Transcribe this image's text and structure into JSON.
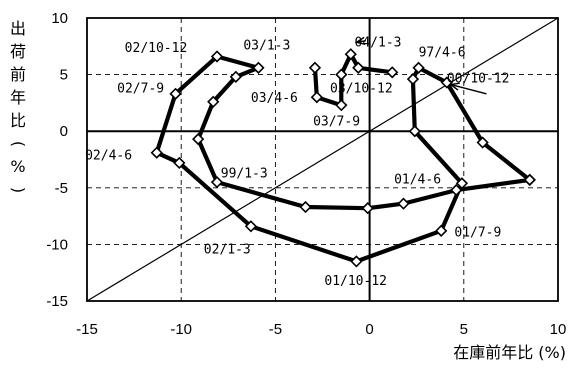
{
  "chart_data": {
    "type": "line",
    "xlabel": "在庫前年比 (%)",
    "ylabel": "出荷前年比 (%)",
    "xlim": [
      -15,
      10
    ],
    "ylim": [
      -15,
      10
    ],
    "x_ticks": [
      "-15",
      "-10",
      "-5",
      "0",
      "5",
      "10"
    ],
    "y_ticks": [
      "10",
      "5",
      "0",
      "-5",
      "-10",
      "-15"
    ],
    "grid": "dashed",
    "reference_line": "y = x",
    "series": [
      {
        "points": [
          {
            "x": 8.5,
            "y": -4.3
          },
          {
            "x": 6.0,
            "y": -1.0
          },
          {
            "x": 4.1,
            "y": 4.3
          },
          {
            "x": 2.6,
            "y": 5.6
          },
          {
            "x": 2.3,
            "y": 4.6
          },
          {
            "x": 2.4,
            "y": 0.0
          },
          {
            "x": 4.9,
            "y": -4.6
          },
          {
            "x": 3.8,
            "y": -8.8
          },
          {
            "x": -0.7,
            "y": -11.5
          },
          {
            "x": -6.3,
            "y": -8.4
          },
          {
            "x": -10.1,
            "y": -2.8
          },
          {
            "x": -11.3,
            "y": -1.9
          },
          {
            "x": -10.3,
            "y": 3.3
          },
          {
            "x": -8.1,
            "y": 6.6
          },
          {
            "x": -5.9,
            "y": 5.6
          },
          {
            "x": -7.1,
            "y": 4.8
          },
          {
            "x": -8.3,
            "y": 2.6
          },
          {
            "x": -9.1,
            "y": -0.7
          },
          {
            "x": -8.1,
            "y": -4.5
          },
          {
            "x": -3.4,
            "y": -6.7
          },
          {
            "x": -0.1,
            "y": -6.8
          },
          {
            "x": 1.8,
            "y": -6.4
          },
          {
            "x": 4.6,
            "y": -5.2
          },
          {
            "x": 8.5,
            "y": -4.3
          }
        ]
      },
      {
        "points": [
          {
            "x": -2.9,
            "y": 5.6
          },
          {
            "x": -2.8,
            "y": 3.0
          },
          {
            "x": -1.5,
            "y": 2.3
          },
          {
            "x": -1.5,
            "y": 5.0
          },
          {
            "x": -1.0,
            "y": 6.8
          },
          {
            "x": -0.6,
            "y": 5.6
          },
          {
            "x": 1.2,
            "y": 5.2
          }
        ]
      }
    ],
    "annotations": [
      {
        "text": "04/1-3",
        "x": -0.8,
        "y": 7.5,
        "arrow_from": [
          -0.2,
          8.0
        ]
      },
      {
        "text": "97/4-6",
        "x": 2.6,
        "y": 6.6
      },
      {
        "text": "00/10-12",
        "x": 4.1,
        "y": 4.3,
        "arrow_from": [
          6.2,
          3.3
        ]
      },
      {
        "text": "02/10-12",
        "x": -13.0,
        "y": 7.0
      },
      {
        "text": "03/1-3",
        "x": -6.7,
        "y": 7.2
      },
      {
        "text": "02/7-9",
        "x": -13.4,
        "y": 3.4
      },
      {
        "text": "03/4-6",
        "x": -6.3,
        "y": 2.6
      },
      {
        "text": "03/10-12",
        "x": -2.1,
        "y": 3.4
      },
      {
        "text": "03/7-9",
        "x": -3.0,
        "y": 0.5
      },
      {
        "text": "02/4-6",
        "x": -15.1,
        "y": -2.5
      },
      {
        "text": "99/1-3",
        "x": -7.9,
        "y": -4.1
      },
      {
        "text": "01/4-6",
        "x": 1.3,
        "y": -4.6
      },
      {
        "text": "01/7-9",
        "x": 4.5,
        "y": -9.3
      },
      {
        "text": "02/1-3",
        "x": -8.8,
        "y": -10.8
      },
      {
        "text": "01/10-12",
        "x": -2.4,
        "y": -13.6
      }
    ]
  }
}
